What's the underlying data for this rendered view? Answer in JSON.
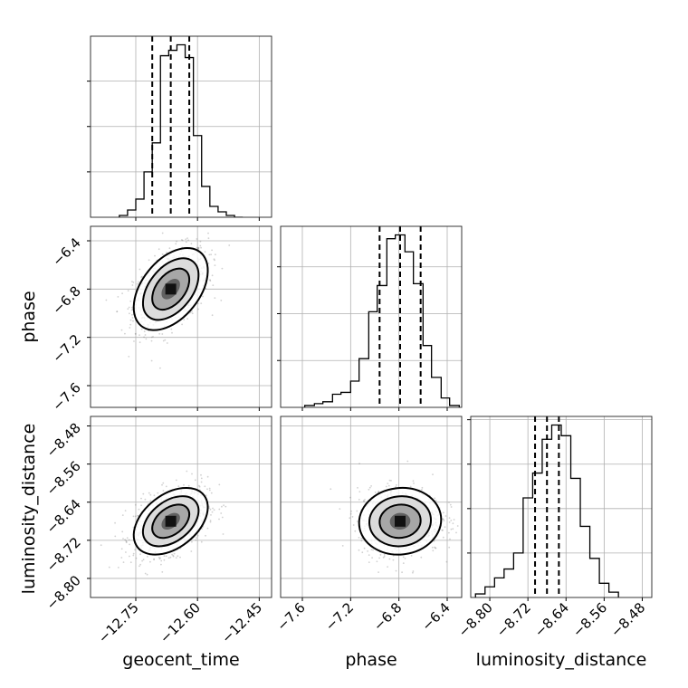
{
  "chart_data": {
    "type": "corner",
    "parameters": [
      "geocent_time",
      "phase",
      "luminosity_distance"
    ],
    "x_axis_labels": [
      "geocent_time",
      "phase",
      "luminosity_distance"
    ],
    "y_axis_labels": [
      "phase",
      "luminosity_distance"
    ],
    "grid": true,
    "ranges": {
      "geocent_time": [
        -12.86,
        -12.42
      ],
      "phase": [
        -7.78,
        -6.28
      ],
      "luminosity_distance": [
        -8.84,
        -8.46
      ]
    },
    "ticks": {
      "geocent_time": [
        -12.75,
        -12.6,
        -12.45
      ],
      "phase": [
        -7.6,
        -7.2,
        -6.8,
        -6.4
      ],
      "luminosity_distance": [
        -8.8,
        -8.72,
        -8.64,
        -8.56,
        -8.48
      ]
    },
    "tick_labels": {
      "geocent_time": [
        "−12.75",
        "−12.60",
        "−12.45"
      ],
      "phase": [
        "−7.6",
        "−7.2",
        "−6.8",
        "−6.4"
      ],
      "luminosity_distance": [
        "−8.80",
        "−8.72",
        "−8.64",
        "−8.56",
        "−8.48"
      ]
    },
    "quantiles": {
      "geocent_time": [
        -12.71,
        -12.665,
        -12.62
      ],
      "phase": [
        -6.96,
        -6.79,
        -6.62
      ],
      "luminosity_distance": [
        -8.705,
        -8.68,
        -8.655
      ]
    },
    "histograms": {
      "geocent_time": {
        "bin_edges": [
          -12.79,
          -12.77,
          -12.75,
          -12.73,
          -12.71,
          -12.69,
          -12.67,
          -12.65,
          -12.63,
          -12.61,
          -12.59,
          -12.57,
          -12.55,
          -12.53,
          -12.51,
          -12.49
        ],
        "counts": [
          1,
          4,
          10,
          25,
          41,
          89,
          92,
          95,
          88,
          45,
          17,
          6,
          3,
          1,
          0
        ]
      },
      "phase": {
        "bin_edges": [
          -7.58,
          -7.5,
          -7.43,
          -7.35,
          -7.28,
          -7.2,
          -7.13,
          -7.05,
          -6.98,
          -6.9,
          -6.83,
          -6.75,
          -6.68,
          -6.6,
          -6.53,
          -6.45,
          -6.38,
          -6.3
        ],
        "counts": [
          1,
          2,
          3,
          7,
          8,
          14,
          26,
          51,
          65,
          90,
          92,
          83,
          66,
          33,
          16,
          5,
          1
        ]
      },
      "luminosity_distance": {
        "bin_edges": [
          -8.83,
          -8.81,
          -8.79,
          -8.77,
          -8.75,
          -8.73,
          -8.71,
          -8.69,
          -8.67,
          -8.65,
          -8.63,
          -8.61,
          -8.59,
          -8.57,
          -8.55,
          -8.53
        ],
        "counts": [
          2,
          6,
          11,
          16,
          25,
          56,
          70,
          89,
          97,
          91,
          67,
          40,
          22,
          8,
          3
        ]
      }
    },
    "pair_plots": [
      {
        "x": "geocent_time",
        "y": "phase",
        "center": [
          -12.665,
          -6.8
        ],
        "sigma": [
          0.045,
          0.17
        ],
        "correlation": 0.45
      },
      {
        "x": "geocent_time",
        "y": "luminosity_distance",
        "center": [
          -12.665,
          -8.68
        ],
        "sigma": [
          0.045,
          0.035
        ],
        "correlation": 0.42
      },
      {
        "x": "phase",
        "y": "luminosity_distance",
        "center": [
          -6.79,
          -8.68
        ],
        "sigma": [
          0.17,
          0.035
        ],
        "correlation": 0.05
      }
    ],
    "contour_levels_sigma": [
      0.5,
      1.0,
      1.5,
      2.0
    ]
  }
}
